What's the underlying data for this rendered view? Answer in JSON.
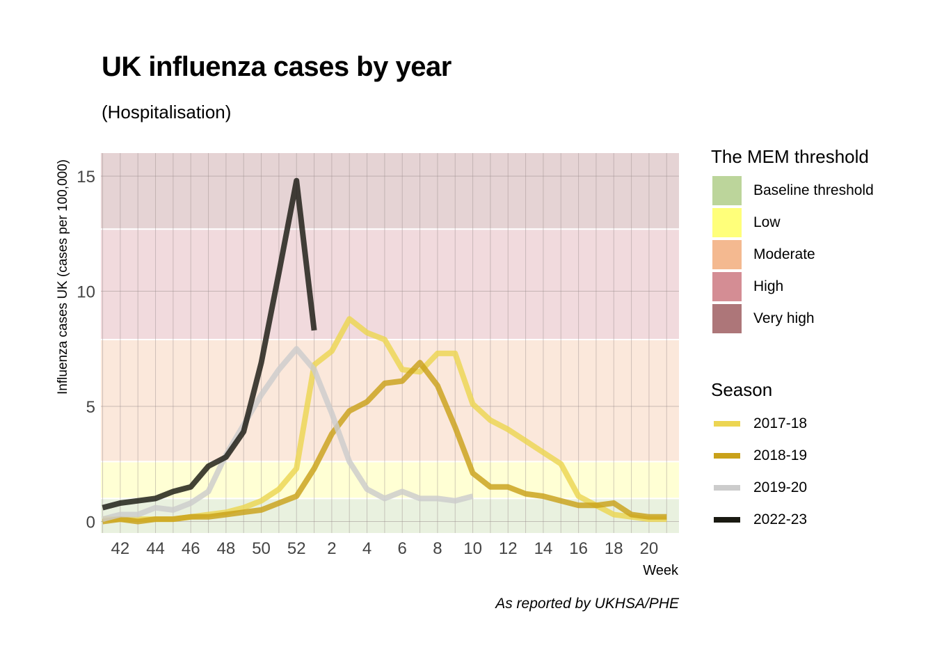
{
  "chart_data": {
    "type": "line",
    "title": "UK influenza cases by year",
    "subtitle": "(Hospitalisation)",
    "caption": "As reported by UKHSA/PHE",
    "xlabel": "Week",
    "ylabel": "Influenza cases UK (cases per 100,000)",
    "x_ticks": [
      "42",
      "44",
      "46",
      "48",
      "50",
      "52",
      "2",
      "4",
      "6",
      "8",
      "10",
      "12",
      "14",
      "16",
      "18",
      "20"
    ],
    "y_ticks": [
      "0",
      "5",
      "10",
      "15"
    ],
    "ylim": [
      -0.5,
      16
    ],
    "grid": true,
    "weeks": [
      "41",
      "42",
      "43",
      "44",
      "45",
      "46",
      "47",
      "48",
      "49",
      "50",
      "51",
      "52",
      "1",
      "2",
      "3",
      "4",
      "5",
      "6",
      "7",
      "8",
      "9",
      "10",
      "11",
      "12",
      "13",
      "14",
      "15",
      "16",
      "17",
      "18",
      "19",
      "20",
      "21"
    ],
    "thresholds": {
      "title": "The MEM threshold",
      "bands": [
        {
          "name": "Baseline threshold",
          "from": -0.5,
          "to": 1.0,
          "color": "#bcd59b"
        },
        {
          "name": "Low",
          "from": 1.0,
          "to": 2.6,
          "color": "#ffff7a"
        },
        {
          "name": "Moderate",
          "from": 2.6,
          "to": 7.9,
          "color": "#f4b990"
        },
        {
          "name": "High",
          "from": 7.9,
          "to": 12.7,
          "color": "#d48d94"
        },
        {
          "name": "Very high",
          "from": 12.7,
          "to": 16,
          "color": "#ad7679"
        }
      ]
    },
    "series_legend_title": "Season",
    "series": [
      {
        "name": "2017-18",
        "color": "#ecd552",
        "values": [
          0.1,
          0.1,
          0.1,
          0.1,
          0.1,
          0.2,
          0.3,
          0.4,
          0.6,
          0.9,
          1.4,
          2.3,
          6.8,
          7.4,
          8.8,
          8.2,
          7.9,
          6.6,
          6.5,
          7.3,
          7.3,
          5.1,
          4.4,
          4.0,
          3.5,
          3.0,
          2.5,
          1.1,
          0.7,
          0.3,
          0.2,
          0.1,
          0.1
        ]
      },
      {
        "name": "2018-19",
        "color": "#c9a11a",
        "values": [
          0.0,
          0.1,
          0.0,
          0.1,
          0.1,
          0.2,
          0.2,
          0.3,
          0.4,
          0.5,
          0.8,
          1.1,
          2.3,
          3.8,
          4.8,
          5.2,
          6.0,
          6.1,
          6.9,
          5.9,
          4.1,
          2.1,
          1.5,
          1.5,
          1.2,
          1.1,
          0.9,
          0.7,
          0.7,
          0.8,
          0.3,
          0.2,
          0.2
        ]
      },
      {
        "name": "2019-20",
        "color": "#cccccc",
        "values": [
          0.1,
          0.3,
          0.3,
          0.6,
          0.5,
          0.8,
          1.3,
          2.9,
          4.2,
          5.5,
          6.6,
          7.5,
          6.6,
          4.7,
          2.6,
          1.4,
          1.0,
          1.3,
          1.0,
          1.0,
          0.9,
          1.1
        ]
      },
      {
        "name": "2022-23",
        "color": "#1a1a12",
        "values": [
          0.6,
          0.8,
          0.9,
          1.0,
          1.3,
          1.5,
          2.4,
          2.8,
          3.9,
          6.9,
          10.8,
          14.8,
          8.3
        ]
      }
    ]
  }
}
